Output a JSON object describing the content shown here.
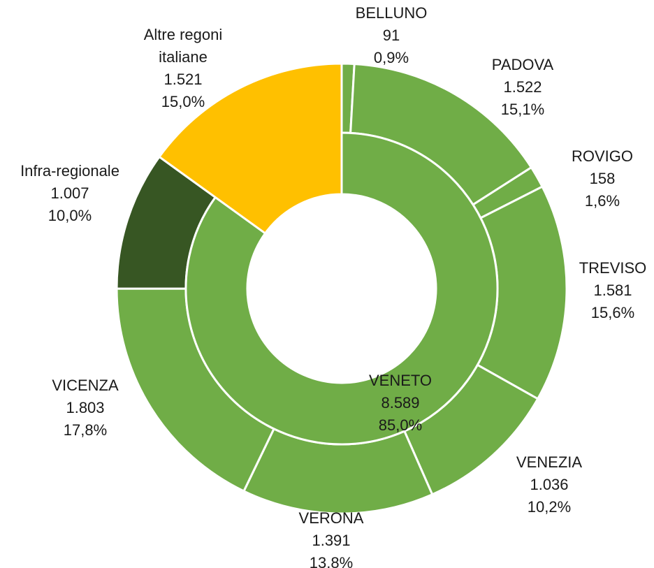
{
  "chart_data": {
    "type": "sunburst",
    "inner": {
      "categories": [
        "VENETO",
        "Altre regoni italiane"
      ],
      "values": [
        8589,
        1521
      ],
      "value_labels": [
        "8.589",
        "1.521"
      ],
      "percents": [
        85.0,
        15.0
      ],
      "percent_labels": [
        "85,0%",
        "15,0%"
      ],
      "colors": [
        "#70ad47",
        "#ffc000"
      ]
    },
    "outer": {
      "categories": [
        "BELLUNO",
        "PADOVA",
        "ROVIGO",
        "TREVISO",
        "VENEZIA",
        "VERONA",
        "VICENZA",
        "Infra-regionale"
      ],
      "values": [
        91,
        1522,
        158,
        1581,
        1036,
        1391,
        1803,
        1007
      ],
      "value_labels": [
        "91",
        "1.522",
        "158",
        "1.581",
        "1.036",
        "1.391",
        "1.803",
        "1.007"
      ],
      "percents": [
        0.9,
        15.1,
        1.6,
        15.6,
        10.2,
        13.8,
        17.8,
        10.0
      ],
      "percent_labels": [
        "0,9%",
        "15,1%",
        "1,6%",
        "15,6%",
        "10,2%",
        "13,8%",
        "17,8%",
        "10,0%"
      ],
      "colors": [
        "#70ad47",
        "#70ad47",
        "#70ad47",
        "#70ad47",
        "#70ad47",
        "#70ad47",
        "#70ad47",
        "#375623"
      ]
    }
  }
}
